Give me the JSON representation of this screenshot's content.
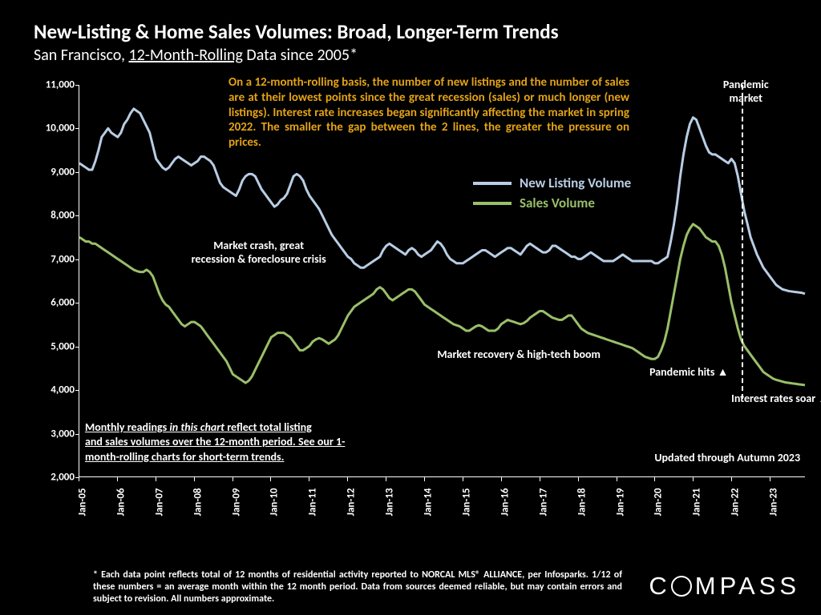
{
  "header": {
    "title": "New-Listing & Home Sales Volumes: Broad, Longer-Term Trends",
    "subtitle_prefix": "San Francisco, ",
    "subtitle_underlined": "12-Month-Rolling",
    "subtitle_suffix": " Data since 2005*"
  },
  "commentary": "On a 12-month-rolling basis, the number of new listings and the number of sales are at their lowest points since the great recession (sales) or much longer (new listings). Interest rate increases began significantly affecting the market in spring 2022. The smaller the gap between the 2 lines, the greater the pressure on prices.",
  "chart": {
    "type": "line",
    "background_color": "#000000",
    "ylim": [
      2000,
      11000
    ],
    "ytick_step": 1000,
    "yticks": [
      "2,000",
      "3,000",
      "4,000",
      "5,000",
      "6,000",
      "7,000",
      "8,000",
      "9,000",
      "10,000",
      "11,000"
    ],
    "x_labels": [
      "Jan-05",
      "Jan-06",
      "Jan-07",
      "Jan-08",
      "Jan-09",
      "Jan-10",
      "Jan-11",
      "Jan-12",
      "Jan-13",
      "Jan-14",
      "Jan-15",
      "Jan-16",
      "Jan-17",
      "Jan-18",
      "Jan-19",
      "Jan-20",
      "Jan-21",
      "Jan-22",
      "Jan-23"
    ],
    "x_count": 228,
    "x_tick_every": 12,
    "line_width": 3,
    "series": [
      {
        "name": "New Listing Volume",
        "color": "#b8cde4",
        "values": [
          9200,
          9150,
          9100,
          9050,
          9050,
          9250,
          9500,
          9800,
          9900,
          10000,
          9900,
          9850,
          9800,
          9900,
          10100,
          10200,
          10350,
          10450,
          10400,
          10350,
          10200,
          10050,
          9900,
          9600,
          9300,
          9200,
          9100,
          9050,
          9100,
          9200,
          9300,
          9350,
          9300,
          9250,
          9200,
          9150,
          9200,
          9250,
          9350,
          9350,
          9300,
          9250,
          9150,
          8950,
          8750,
          8650,
          8600,
          8550,
          8500,
          8450,
          8600,
          8800,
          8900,
          8950,
          8950,
          8900,
          8750,
          8600,
          8500,
          8400,
          8300,
          8200,
          8250,
          8350,
          8400,
          8500,
          8700,
          8900,
          8950,
          8900,
          8800,
          8600,
          8450,
          8350,
          8250,
          8150,
          8000,
          7850,
          7700,
          7550,
          7450,
          7350,
          7250,
          7150,
          7050,
          7000,
          6900,
          6850,
          6800,
          6800,
          6850,
          6900,
          6950,
          7000,
          7050,
          7200,
          7300,
          7350,
          7300,
          7250,
          7200,
          7150,
          7100,
          7200,
          7250,
          7200,
          7100,
          7050,
          7100,
          7150,
          7200,
          7300,
          7400,
          7350,
          7250,
          7100,
          7000,
          6950,
          6900,
          6900,
          6900,
          6950,
          7000,
          7050,
          7100,
          7150,
          7200,
          7200,
          7150,
          7100,
          7050,
          7100,
          7150,
          7200,
          7250,
          7250,
          7200,
          7150,
          7100,
          7200,
          7300,
          7350,
          7300,
          7250,
          7200,
          7150,
          7150,
          7200,
          7300,
          7300,
          7250,
          7200,
          7150,
          7100,
          7050,
          7050,
          7000,
          7000,
          7050,
          7100,
          7150,
          7100,
          7050,
          7000,
          6950,
          6950,
          6950,
          6950,
          7000,
          7050,
          7100,
          7050,
          7000,
          6950,
          6950,
          6950,
          6950,
          6950,
          6950,
          6950,
          6900,
          6900,
          6950,
          7000,
          7050,
          7400,
          7800,
          8300,
          8900,
          9400,
          9800,
          10100,
          10250,
          10200,
          10000,
          9800,
          9600,
          9450,
          9400,
          9400,
          9350,
          9300,
          9250,
          9200,
          9300,
          9200,
          8900,
          8500,
          8100,
          7800,
          7500,
          7300,
          7100,
          6950,
          6800,
          6700,
          6600,
          6500,
          6400,
          6350,
          6300,
          6280,
          6260,
          6250,
          6240,
          6230,
          6220,
          6200
        ]
      },
      {
        "name": "Sales Volume",
        "color": "#9abf6a",
        "values": [
          7500,
          7450,
          7400,
          7400,
          7350,
          7350,
          7300,
          7250,
          7200,
          7150,
          7100,
          7050,
          7000,
          6950,
          6900,
          6850,
          6800,
          6750,
          6720,
          6700,
          6700,
          6750,
          6700,
          6600,
          6400,
          6200,
          6050,
          5950,
          5900,
          5800,
          5700,
          5600,
          5500,
          5450,
          5500,
          5550,
          5550,
          5500,
          5450,
          5350,
          5250,
          5150,
          5050,
          4950,
          4850,
          4750,
          4650,
          4500,
          4350,
          4300,
          4250,
          4200,
          4150,
          4200,
          4300,
          4450,
          4600,
          4750,
          4900,
          5050,
          5200,
          5250,
          5300,
          5300,
          5300,
          5250,
          5200,
          5100,
          5000,
          4900,
          4900,
          4950,
          5000,
          5100,
          5150,
          5180,
          5150,
          5100,
          5050,
          5100,
          5150,
          5250,
          5400,
          5550,
          5700,
          5800,
          5900,
          5950,
          6000,
          6050,
          6100,
          6150,
          6200,
          6300,
          6350,
          6300,
          6200,
          6100,
          6050,
          6100,
          6150,
          6200,
          6250,
          6300,
          6300,
          6250,
          6150,
          6050,
          5950,
          5900,
          5850,
          5800,
          5750,
          5700,
          5650,
          5600,
          5550,
          5500,
          5475,
          5450,
          5400,
          5350,
          5350,
          5400,
          5450,
          5475,
          5450,
          5400,
          5350,
          5350,
          5350,
          5400,
          5500,
          5550,
          5600,
          5575,
          5550,
          5525,
          5500,
          5525,
          5575,
          5650,
          5700,
          5750,
          5800,
          5800,
          5750,
          5700,
          5650,
          5625,
          5600,
          5600,
          5650,
          5700,
          5700,
          5600,
          5500,
          5400,
          5350,
          5300,
          5275,
          5250,
          5225,
          5200,
          5175,
          5150,
          5125,
          5100,
          5075,
          5050,
          5025,
          5000,
          4975,
          4950,
          4900,
          4850,
          4800,
          4750,
          4725,
          4700,
          4700,
          4750,
          4900,
          5100,
          5400,
          5800,
          6200,
          6600,
          7000,
          7300,
          7550,
          7700,
          7800,
          7750,
          7700,
          7600,
          7500,
          7450,
          7400,
          7400,
          7300,
          7100,
          6800,
          6400,
          6000,
          5700,
          5400,
          5150,
          5000,
          4900,
          4800,
          4700,
          4600,
          4500,
          4400,
          4350,
          4300,
          4250,
          4220,
          4200,
          4180,
          4160,
          4150,
          4140,
          4130,
          4120,
          4110,
          4100
        ]
      }
    ]
  },
  "legend": {
    "items": [
      {
        "label": "New Listing Volume",
        "color": "#b8cde4"
      },
      {
        "label": "Sales Volume",
        "color": "#9abf6a"
      }
    ]
  },
  "annotations": {
    "market_crash": "Market crash,  great\nrecession & foreclosure crisis",
    "market_recovery": "Market recovery & high-tech boom",
    "pandemic_hits": "Pandemic hits ▲",
    "pandemic_market": "Pandemic\nmarket",
    "interest_rates": "Interest rates soar ▲",
    "updated": "Updated through Autumn 2023",
    "bottom_note_u1": "Monthly readings ",
    "bottom_note_i": "in this chart",
    "bottom_note_u2": " reflect total listing\nand sales volumes over the 12-month period.",
    "bottom_note_tail": " See our 1-month-rolling charts for short-term trends."
  },
  "footnote": "* Each data point reflects total of 12 months of residential activity reported to NORCAL MLS® ALLIANCE, per Infosparks. 1/12 of these numbers = an average month within the 12 month period. Data from sources deemed reliable, but may contain errors and subject to revision. All numbers approximate.",
  "logo": {
    "text_after_o": "MPASS",
    "text_before_o": "C"
  }
}
